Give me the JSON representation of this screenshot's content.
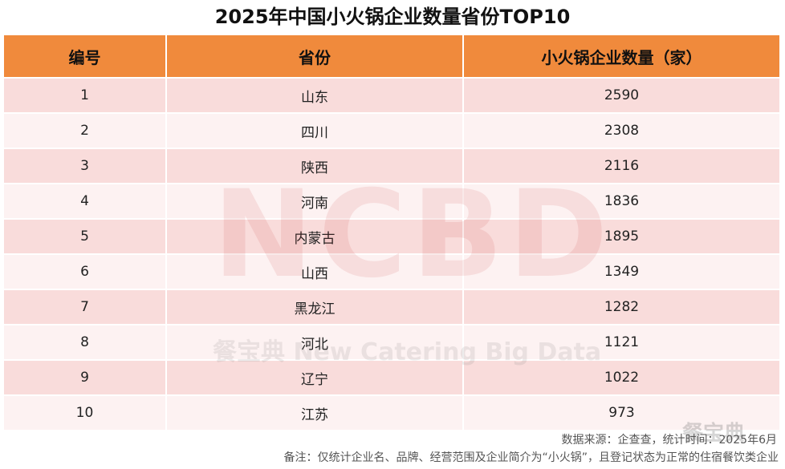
{
  "title": "2025年中国小火锅企业数量省份TOP10",
  "table": {
    "headers": [
      "编号",
      "省份",
      "小火锅企业数量（家）"
    ],
    "rows": [
      [
        "1",
        "山东",
        "2590"
      ],
      [
        "2",
        "四川",
        "2308"
      ],
      [
        "3",
        "陕西",
        "2116"
      ],
      [
        "4",
        "河南",
        "1836"
      ],
      [
        "5",
        "内蒙古",
        "1895"
      ],
      [
        "6",
        "山西",
        "1349"
      ],
      [
        "7",
        "黑龙江",
        "1282"
      ],
      [
        "8",
        "河北",
        "1121"
      ],
      [
        "9",
        "辽宁",
        "1022"
      ],
      [
        "10",
        "江苏",
        "973"
      ]
    ]
  },
  "watermark": {
    "main": "NCBD",
    "sub": "餐宝典 New Catering Big Data",
    "corner": "餐宝典"
  },
  "footer": {
    "source": "数据来源：企查查，统计时间：2025年6月",
    "note": "备注：仅统计企业名、品牌、经营范围及企业简介为“小火锅”，且登记状态为正常的住宿餐饮类企业"
  },
  "colors": {
    "header_bg": "#f08a3c",
    "row_odd_bg": "#f9dcdb",
    "row_even_bg": "#fdf2f2"
  }
}
